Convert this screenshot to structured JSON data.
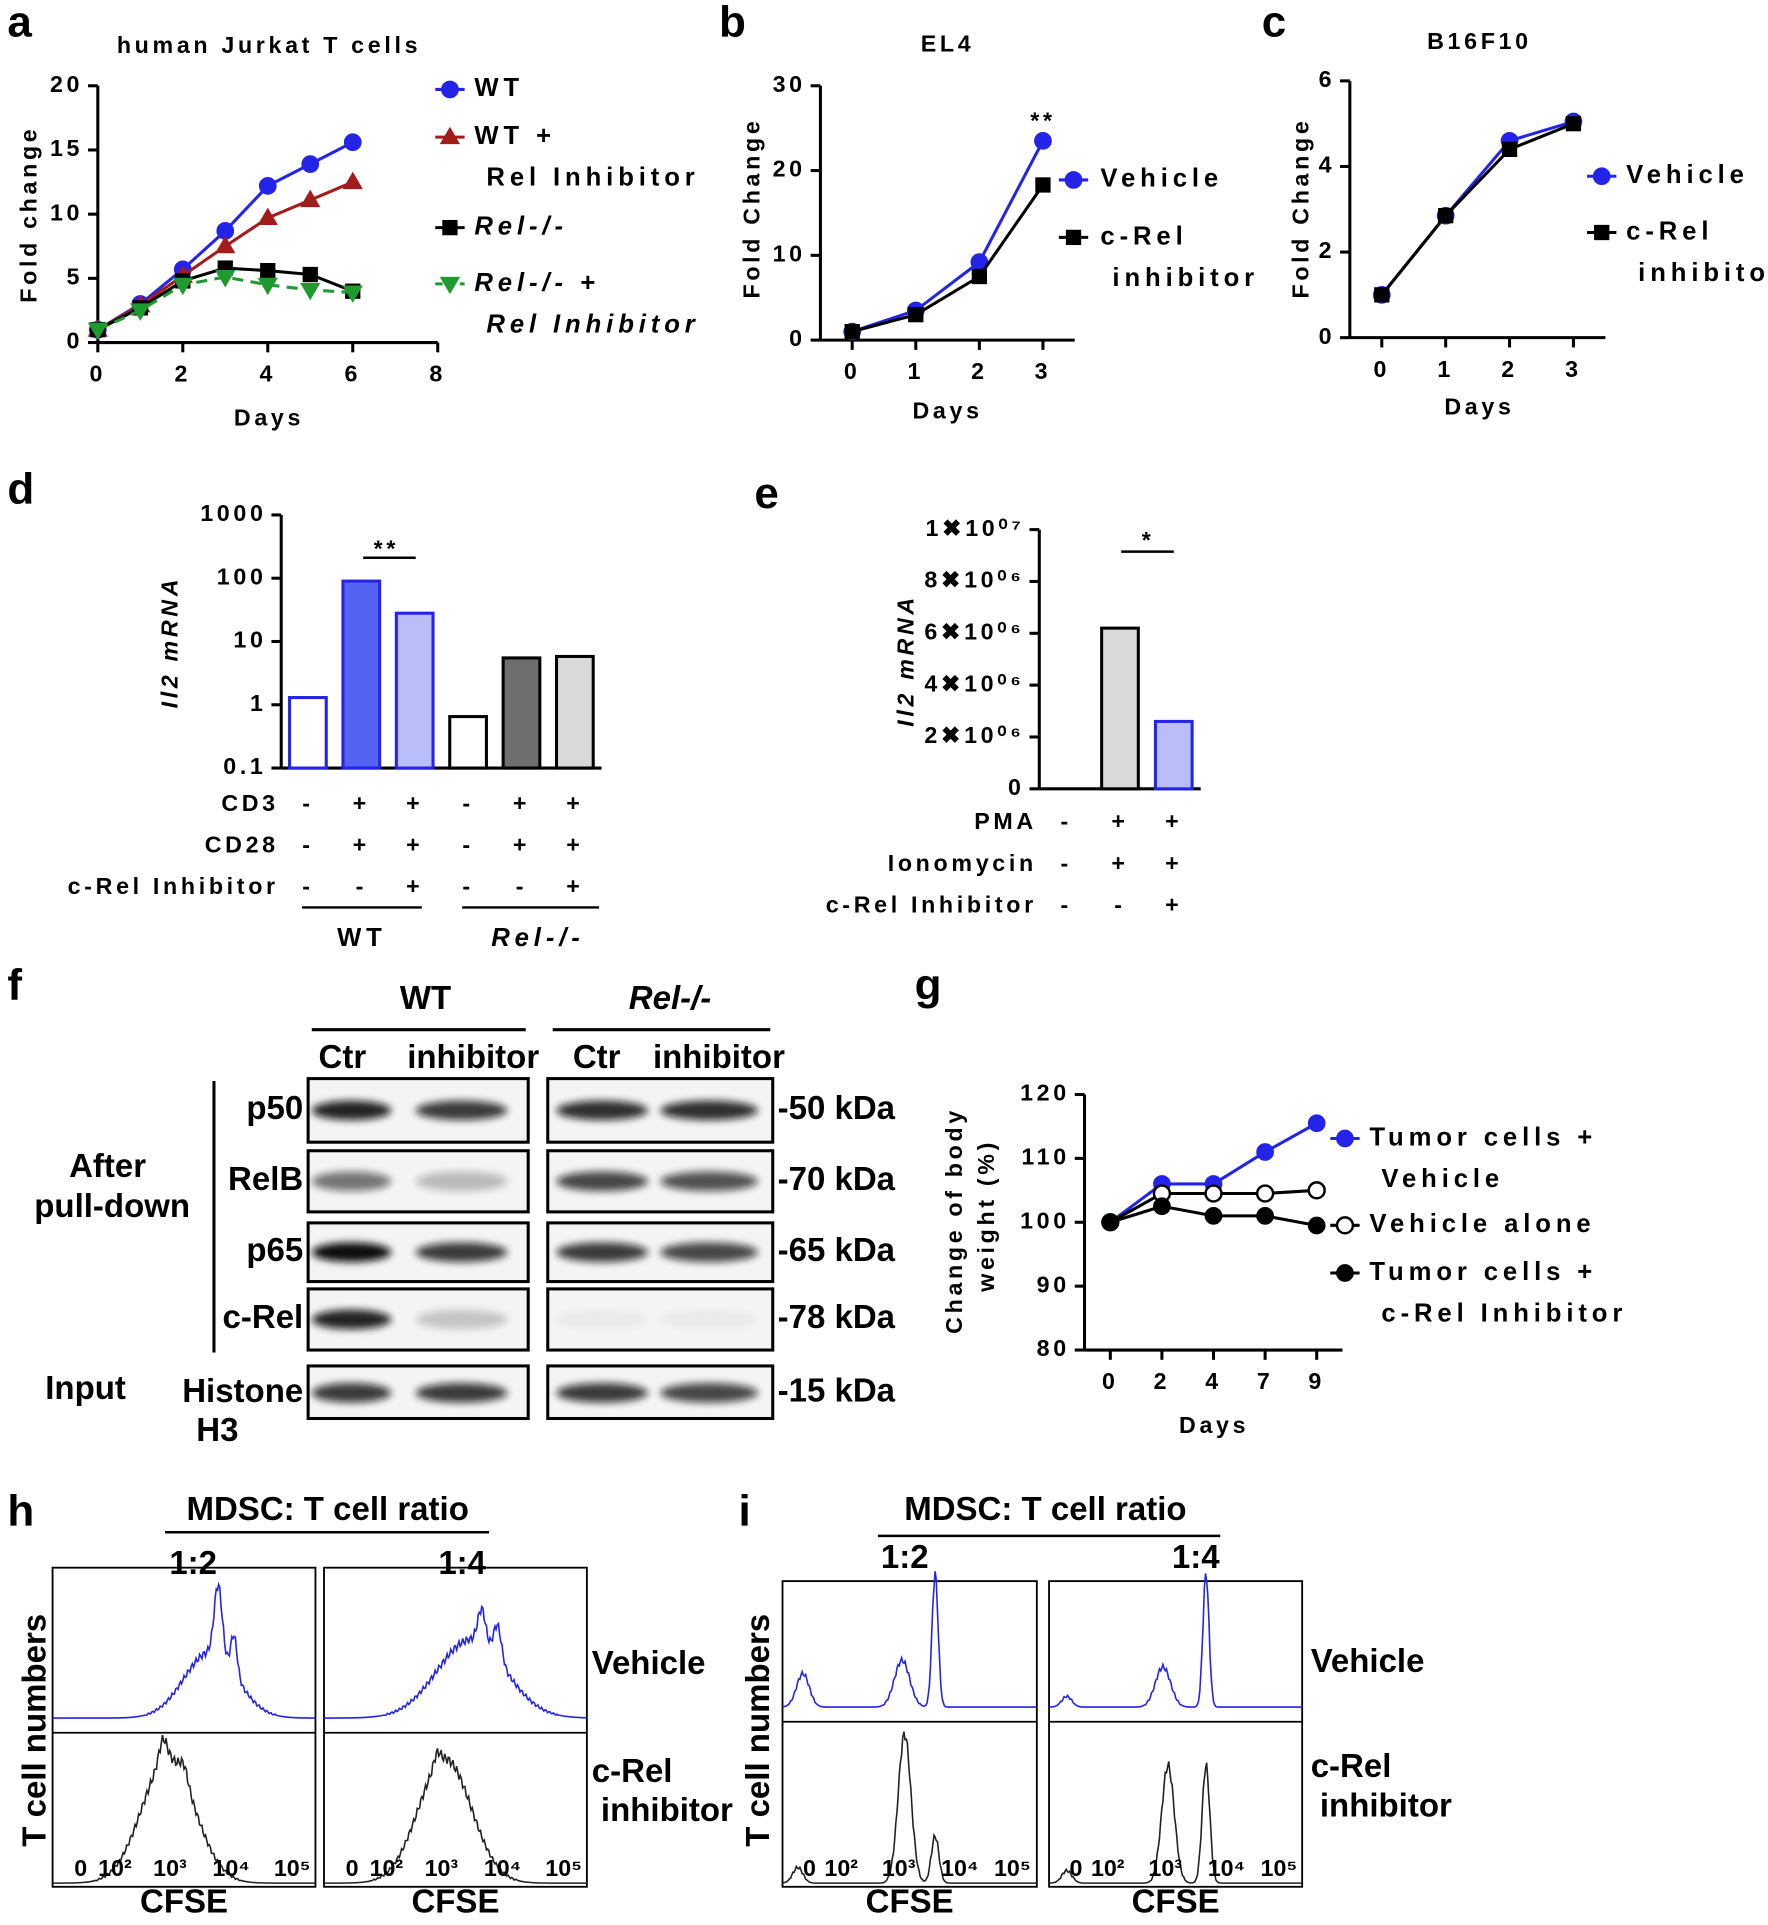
{
  "chart_data": [
    {
      "type": "line",
      "label": "a",
      "title": "human Jurkat T cells",
      "xlabel": "Days",
      "ylabel": "Fold change",
      "x": [
        0,
        1,
        2,
        3,
        4,
        5,
        6
      ],
      "xlim": [
        0,
        8
      ],
      "xticks": [
        0,
        2,
        4,
        6,
        8
      ],
      "ylim": [
        0,
        20
      ],
      "yticks": [
        0,
        5,
        10,
        15,
        20
      ],
      "series": [
        {
          "name": "WT",
          "color": "#2424e8",
          "marker": "circle",
          "values": [
            1,
            3,
            5.7,
            8.7,
            12.2,
            13.9,
            15.6
          ]
        },
        {
          "name": "WT + Rel Inhibitor",
          "color": "#a31c1c",
          "marker": "triangle",
          "values": [
            1,
            2.9,
            5.2,
            7.5,
            9.7,
            11.1,
            12.5
          ]
        },
        {
          "name": "Rel-/-",
          "color": "#000000",
          "marker": "square",
          "values": [
            1,
            2.7,
            4.8,
            5.8,
            5.6,
            5.3,
            4.0
          ]
        },
        {
          "name": "Rel-/- + Rel Inhibitor",
          "color": "#1e9a2e",
          "marker": "triangle-down",
          "dash": true,
          "values": [
            1,
            2.5,
            4.5,
            5.1,
            4.5,
            4.1,
            3.9
          ]
        }
      ]
    },
    {
      "type": "line",
      "label": "b",
      "title": "EL4",
      "xlabel": "Days",
      "ylabel": "Fold Change",
      "annotation": "**",
      "x": [
        0,
        1,
        2,
        3
      ],
      "xlim": [
        -0.5,
        3.5
      ],
      "xticks": [
        0,
        1,
        2,
        3
      ],
      "ylim": [
        0,
        30
      ],
      "yticks": [
        0,
        10,
        20,
        30
      ],
      "series": [
        {
          "name": "Vehicle",
          "color": "#2424e8",
          "marker": "circle",
          "values": [
            1,
            3.5,
            9.2,
            23.5
          ]
        },
        {
          "name": "c-Rel inhibitor",
          "color": "#000000",
          "marker": "square",
          "values": [
            1,
            3,
            7.5,
            18.3
          ]
        }
      ]
    },
    {
      "type": "line",
      "label": "c",
      "title": "B16F10",
      "xlabel": "Days",
      "ylabel": "Fold Change",
      "x": [
        0,
        1,
        2,
        3
      ],
      "xlim": [
        -0.5,
        3.5
      ],
      "xticks": [
        0,
        1,
        2,
        3
      ],
      "ylim": [
        0,
        6
      ],
      "yticks": [
        0,
        2,
        4,
        6
      ],
      "series": [
        {
          "name": "Vehicle",
          "color": "#2424e8",
          "marker": "circle",
          "values": [
            1,
            2.85,
            4.6,
            5.05
          ]
        },
        {
          "name": "c-Rel inhibitor",
          "color": "#000000",
          "marker": "square",
          "values": [
            1,
            2.85,
            4.4,
            5.0
          ]
        }
      ]
    },
    {
      "type": "bar",
      "label": "d",
      "ylabel": "Il2 mRNA",
      "yscale": "log",
      "annotation": "**",
      "ylim": [
        0.1,
        1000
      ],
      "yticks": [
        0.1,
        1,
        10,
        100,
        1000
      ],
      "values": [
        1.3,
        90,
        28,
        0.65,
        5.5,
        5.8
      ],
      "colors": [
        "#ffffff",
        "#5563f2",
        "#b9bdf8",
        "#ffffff",
        "#6e6e6e",
        "#d9d9d9"
      ],
      "edgecolors": [
        "#2424e8",
        "#2424e8",
        "#2424e8",
        "#000000",
        "#000000",
        "#000000"
      ],
      "conditions": [
        {
          "name": "CD3",
          "values": [
            "-",
            "+",
            "+",
            "-",
            "+",
            "+"
          ]
        },
        {
          "name": "CD28",
          "values": [
            "-",
            "+",
            "+",
            "-",
            "+",
            "+"
          ]
        },
        {
          "name": "c-Rel Inhibitor",
          "values": [
            "-",
            "-",
            "+",
            "-",
            "-",
            "+"
          ]
        }
      ],
      "groups": [
        "WT",
        "Rel-/-"
      ]
    },
    {
      "type": "bar",
      "label": "e",
      "ylabel": "Il2 mRNA",
      "annotation": "*",
      "ylim": [
        0,
        10000000
      ],
      "yticks": [
        0,
        {
          "value": 2000000,
          "label": "2✖10⁰⁶"
        },
        {
          "value": 4000000,
          "label": "4✖10⁰⁶"
        },
        {
          "value": 6000000,
          "label": "6✖10⁰⁶"
        },
        {
          "value": 8000000,
          "label": "8✖10⁰⁶"
        },
        {
          "value": 10000000,
          "label": "1✖10⁰⁷"
        }
      ],
      "values": [
        0,
        6200000,
        2600000
      ],
      "colors": [
        "#ffffff",
        "#d9d9d9",
        "#b9bdf8"
      ],
      "edgecolors": [
        "#000000",
        "#000000",
        "#2424e8"
      ],
      "conditions": [
        {
          "name": "PMA",
          "values": [
            "-",
            "+",
            "+"
          ]
        },
        {
          "name": "Ionomycin",
          "values": [
            "-",
            "+",
            "+"
          ]
        },
        {
          "name": "c-Rel Inhibitor",
          "values": [
            "-",
            "-",
            "+"
          ]
        }
      ]
    },
    {
      "type": "line",
      "label": "g",
      "xlabel": "Days",
      "ylabel": "Change of body weight (%)",
      "categories": [
        "0",
        "2",
        "4",
        "7",
        "9"
      ],
      "ylim": [
        80,
        120
      ],
      "yticks": [
        80,
        90,
        100,
        110,
        120
      ],
      "series": [
        {
          "name": "Tumor cells + Vehicle",
          "color": "#2424e8",
          "marker": "circle",
          "values": [
            100,
            106,
            106,
            111,
            115.5
          ]
        },
        {
          "name": "Vehicle alone",
          "color": "#000000",
          "marker": "circle-open",
          "values": [
            100,
            104.5,
            104.5,
            104.5,
            105
          ]
        },
        {
          "name": "Tumor cells + c-Rel Inhibitor",
          "color": "#000000",
          "marker": "circle",
          "values": [
            100,
            102.5,
            101,
            101,
            99.5
          ]
        }
      ]
    }
  ],
  "blot": {
    "label": "f",
    "groups": [
      "WT",
      "Rel-/-"
    ],
    "lanes": [
      "Ctr",
      "inhibitor",
      "Ctr",
      "inhibitor"
    ],
    "rows": [
      "p50",
      "RelB",
      "p65",
      "c-Rel",
      "Histone H3"
    ],
    "sizes": [
      "-50 kDa",
      "-70 kDa",
      "-65 kDa",
      "-78 kDa",
      "-15 kDa"
    ],
    "sections": [
      "After pull-down",
      "Input"
    ]
  },
  "flow": [
    {
      "label": "h",
      "title": "MDSC: T cell ratio",
      "ratios": [
        "1:2",
        "1:4"
      ],
      "conditions": [
        "Vehicle",
        "c-Rel inhibitor"
      ],
      "ylabel": "T cell numbers",
      "xlabel": "CFSE",
      "xticks": [
        "0",
        "10²",
        "10³",
        "10⁴",
        "10⁵"
      ]
    },
    {
      "label": "i",
      "title": "MDSC: T cell ratio",
      "ratios": [
        "1:2",
        "1:4"
      ],
      "conditions": [
        "Vehicle",
        "c-Rel inhibitor"
      ],
      "ylabel": "T cell numbers",
      "xlabel": "CFSE",
      "xticks": [
        "0",
        "10²",
        "10³",
        "10⁴",
        "10⁵"
      ]
    }
  ]
}
